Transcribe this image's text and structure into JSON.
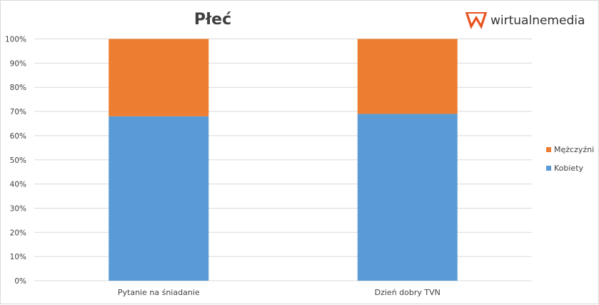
{
  "chart_data": {
    "type": "bar",
    "stacked": true,
    "normalized": true,
    "title": "Płeć",
    "categories": [
      "Pytanie na śniadanie",
      "Dzień dobry TVN"
    ],
    "series": [
      {
        "name": "Kobiety",
        "values": [
          68,
          69
        ],
        "color": "#5b9bd5"
      },
      {
        "name": "Mężczyźni",
        "values": [
          32,
          31
        ],
        "color": "#ed7d31"
      }
    ],
    "y_ticks": [
      "0%",
      "10%",
      "20%",
      "30%",
      "40%",
      "50%",
      "60%",
      "70%",
      "80%",
      "90%",
      "100%"
    ],
    "ylim": [
      0,
      100
    ],
    "grid": true,
    "legend_position": "right"
  },
  "logo": {
    "text": "wirtualnemedia",
    "color": "#e8531f"
  }
}
